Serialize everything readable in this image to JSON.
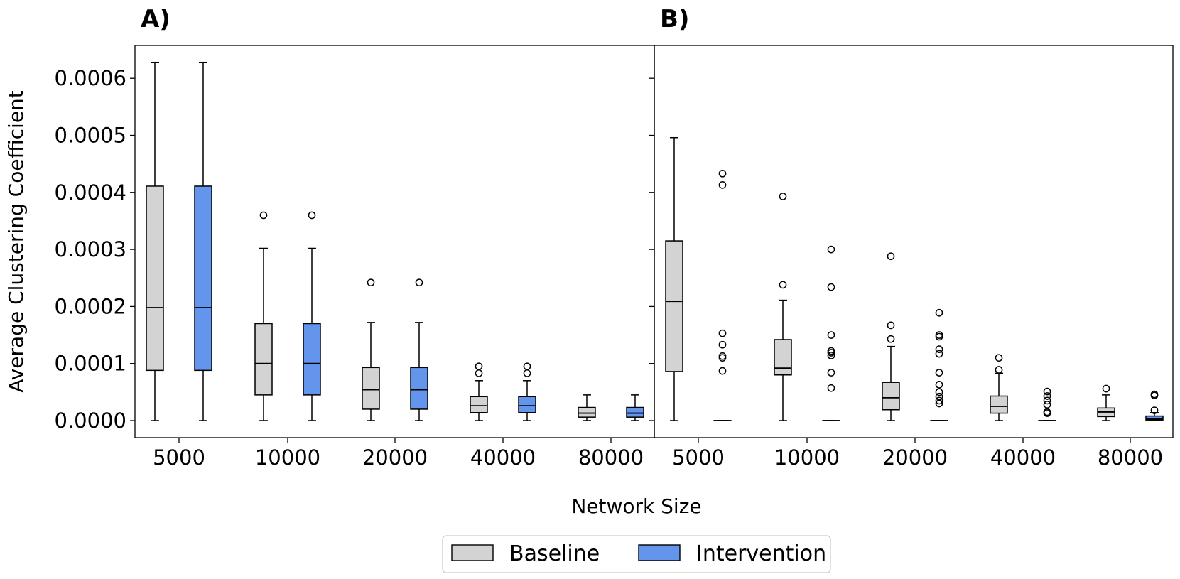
{
  "chart_data": {
    "type": "box",
    "ylabel": "Average Clustering Coefficient",
    "xlabel": "Network Size",
    "ylim": [
      -3e-05,
      0.00066
    ],
    "yticks": [
      "0.0000",
      "0.0001",
      "0.0002",
      "0.0003",
      "0.0004",
      "0.0005",
      "0.0006"
    ],
    "ytick_values": [
      0,
      0.0001,
      0.0002,
      0.0003,
      0.0004,
      0.0005,
      0.0006
    ],
    "categories": [
      "5000",
      "10000",
      "20000",
      "40000",
      "80000"
    ],
    "legend": {
      "placement": "bottom-center",
      "entries": [
        {
          "name": "Baseline",
          "color": "#d3d3d3"
        },
        {
          "name": "Intervention",
          "color": "#6495ed"
        }
      ]
    },
    "panels": [
      {
        "label": "A)",
        "series": [
          {
            "name": "Baseline",
            "color": "#d3d3d3",
            "boxes": [
              {
                "category": "5000",
                "whislo": 0,
                "q1": 8.8e-05,
                "med": 0.000198,
                "q3": 0.000411,
                "whishi": 0.000628,
                "fliers": []
              },
              {
                "category": "10000",
                "whislo": 0,
                "q1": 4.5e-05,
                "med": 0.0001,
                "q3": 0.00017,
                "whishi": 0.000302,
                "fliers": [
                  0.00036
                ]
              },
              {
                "category": "20000",
                "whislo": 0,
                "q1": 2e-05,
                "med": 5.4e-05,
                "q3": 9.3e-05,
                "whishi": 0.000172,
                "fliers": [
                  0.000242
                ]
              },
              {
                "category": "40000",
                "whislo": 0,
                "q1": 1.4e-05,
                "med": 2.6e-05,
                "q3": 4.2e-05,
                "whishi": 7e-05,
                "fliers": [
                  8.3e-05,
                  9.5e-05
                ]
              },
              {
                "category": "80000",
                "whislo": 0,
                "q1": 6e-06,
                "med": 1.3e-05,
                "q3": 2.3e-05,
                "whishi": 4.5e-05,
                "fliers": []
              }
            ]
          },
          {
            "name": "Intervention",
            "color": "#6495ed",
            "boxes": [
              {
                "category": "5000",
                "whislo": 0,
                "q1": 8.8e-05,
                "med": 0.000198,
                "q3": 0.000411,
                "whishi": 0.000628,
                "fliers": []
              },
              {
                "category": "10000",
                "whislo": 0,
                "q1": 4.5e-05,
                "med": 0.0001,
                "q3": 0.00017,
                "whishi": 0.000302,
                "fliers": [
                  0.00036
                ]
              },
              {
                "category": "20000",
                "whislo": 0,
                "q1": 2e-05,
                "med": 5.4e-05,
                "q3": 9.3e-05,
                "whishi": 0.000172,
                "fliers": [
                  0.000242
                ]
              },
              {
                "category": "40000",
                "whislo": 0,
                "q1": 1.4e-05,
                "med": 2.6e-05,
                "q3": 4.2e-05,
                "whishi": 7e-05,
                "fliers": [
                  8.3e-05,
                  9.5e-05
                ]
              },
              {
                "category": "80000",
                "whislo": 0,
                "q1": 6e-06,
                "med": 1.3e-05,
                "q3": 2.3e-05,
                "whishi": 4.5e-05,
                "fliers": []
              }
            ]
          }
        ]
      },
      {
        "label": "B)",
        "series": [
          {
            "name": "Baseline",
            "color": "#d3d3d3",
            "boxes": [
              {
                "category": "5000",
                "whislo": 0,
                "q1": 8.6e-05,
                "med": 0.000209,
                "q3": 0.000315,
                "whishi": 0.000496,
                "fliers": []
              },
              {
                "category": "10000",
                "whislo": 0,
                "q1": 8e-05,
                "med": 9.2e-05,
                "q3": 0.000142,
                "whishi": 0.000211,
                "fliers": [
                  0.000238,
                  0.000393
                ]
              },
              {
                "category": "20000",
                "whislo": 0,
                "q1": 1.9e-05,
                "med": 4e-05,
                "q3": 6.7e-05,
                "whishi": 0.00013,
                "fliers": [
                  0.000143,
                  0.000167,
                  0.000288
                ]
              },
              {
                "category": "40000",
                "whislo": 0,
                "q1": 1.3e-05,
                "med": 2.5e-05,
                "q3": 4.3e-05,
                "whishi": 8.3e-05,
                "fliers": [
                  8.9e-05,
                  0.00011
                ]
              },
              {
                "category": "80000",
                "whislo": 0,
                "q1": 7e-06,
                "med": 1.5e-05,
                "q3": 2.2e-05,
                "whishi": 4.5e-05,
                "fliers": [
                  5.6e-05
                ]
              }
            ]
          },
          {
            "name": "Intervention",
            "color": "#6495ed",
            "boxes": [
              {
                "category": "5000",
                "whislo": 0,
                "q1": 0,
                "med": 0,
                "q3": 0,
                "whishi": 0,
                "fliers": [
                  8.7e-05,
                  0.00011,
                  0.000113,
                  0.000133,
                  0.000153,
                  0.000413,
                  0.000433
                ]
              },
              {
                "category": "10000",
                "whislo": 0,
                "q1": 0,
                "med": 0,
                "q3": 0,
                "whishi": 0,
                "fliers": [
                  5.7e-05,
                  8.4e-05,
                  0.000114,
                  0.000119,
                  0.000122,
                  0.00015,
                  0.000234,
                  0.0003
                ]
              },
              {
                "category": "20000",
                "whislo": 0,
                "q1": 0,
                "med": 0,
                "q3": 0,
                "whishi": 0,
                "fliers": [
                  3e-05,
                  3.5e-05,
                  4.2e-05,
                  5e-05,
                  6.3e-05,
                  8.4e-05,
                  0.000117,
                  0.000125,
                  0.000147,
                  0.00015,
                  0.000189
                ]
              },
              {
                "category": "40000",
                "whislo": 0,
                "q1": 0,
                "med": 0,
                "q3": 0,
                "whishi": 0,
                "fliers": [
                  1.3e-05,
                  1.5e-05,
                  2.8e-05,
                  3.5e-05,
                  4.3e-05,
                  5.1e-05
                ]
              },
              {
                "category": "80000",
                "whislo": 0,
                "q1": 1e-06,
                "med": 3e-06,
                "q3": 8e-06,
                "whishi": 1.4e-05,
                "fliers": [
                  1.8e-05,
                  4.4e-05,
                  4.6e-05
                ]
              }
            ]
          }
        ]
      }
    ]
  }
}
